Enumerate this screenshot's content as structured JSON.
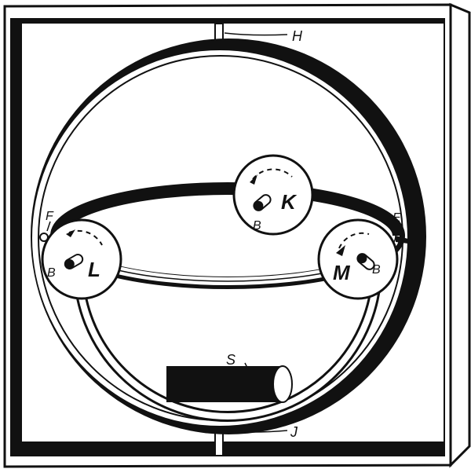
{
  "diagram": {
    "labels": {
      "H": "H",
      "J": "J",
      "E": "E",
      "F": "F",
      "K": "K",
      "L": "L",
      "M": "M",
      "S": "S",
      "B_K": "B",
      "B_L": "B",
      "B_M": "B"
    },
    "colors": {
      "ink": "#111111",
      "paper": "#ffffff"
    }
  }
}
